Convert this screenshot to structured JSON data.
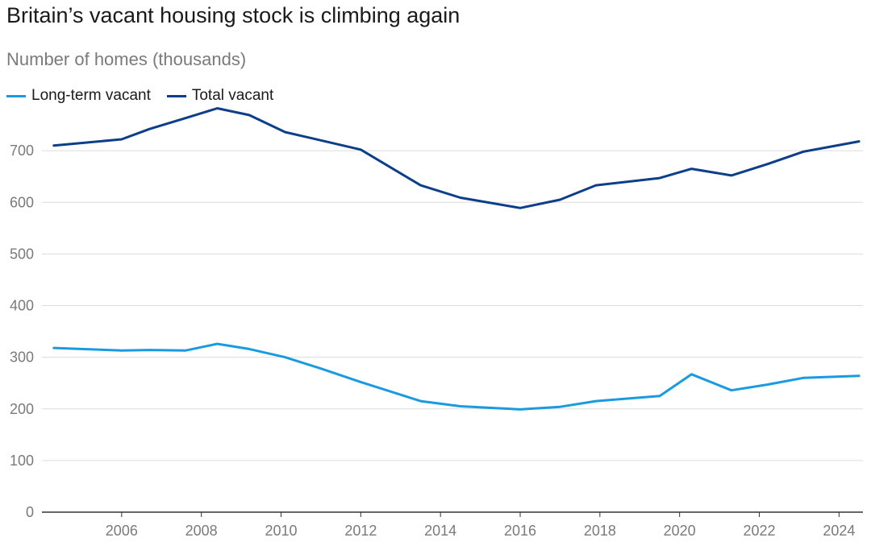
{
  "title": "Britain’s vacant housing stock is climbing again",
  "subtitle": "Number of homes (thousands)",
  "colors": {
    "long_term": "#1a9ae0",
    "total": "#0d3e8a",
    "grid": "#dcdcdc",
    "axis": "#333333",
    "tick_text": "#7a7a7a"
  },
  "chart_data": {
    "type": "line",
    "title": "Britain’s vacant housing stock is climbing again",
    "ylabel": "Number of homes (thousands)",
    "xlabel": "",
    "xlim": [
      2004,
      2024.6
    ],
    "ylim": [
      0,
      800
    ],
    "yticks": [
      0,
      100,
      200,
      300,
      400,
      500,
      600,
      700
    ],
    "xticks": [
      2006,
      2008,
      2010,
      2012,
      2014,
      2016,
      2018,
      2020,
      2022,
      2024
    ],
    "grid": true,
    "legend_position": "top-left",
    "series": [
      {
        "name": "Long-term vacant",
        "color": "#1a9ae0",
        "x": [
          2004.3,
          2006.0,
          2006.7,
          2007.6,
          2008.4,
          2009.2,
          2010.1,
          2011.0,
          2012.0,
          2013.5,
          2014.5,
          2016.0,
          2017.0,
          2017.9,
          2019.5,
          2020.3,
          2021.3,
          2022.2,
          2023.1,
          2024.5
        ],
        "values": [
          318,
          313,
          314,
          313,
          326,
          316,
          300,
          278,
          252,
          215,
          205,
          199,
          204,
          215,
          225,
          267,
          236,
          247,
          260,
          264
        ]
      },
      {
        "name": "Total vacant",
        "color": "#0d3e8a",
        "x": [
          2004.3,
          2006.0,
          2006.7,
          2007.6,
          2008.4,
          2009.2,
          2010.1,
          2011.0,
          2012.0,
          2013.5,
          2014.5,
          2016.0,
          2017.0,
          2017.9,
          2019.5,
          2020.3,
          2021.3,
          2022.2,
          2023.1,
          2024.5
        ],
        "values": [
          710,
          722,
          742,
          763,
          782,
          769,
          736,
          720,
          702,
          633,
          609,
          589,
          605,
          633,
          647,
          665,
          652,
          674,
          698,
          718
        ]
      }
    ]
  }
}
